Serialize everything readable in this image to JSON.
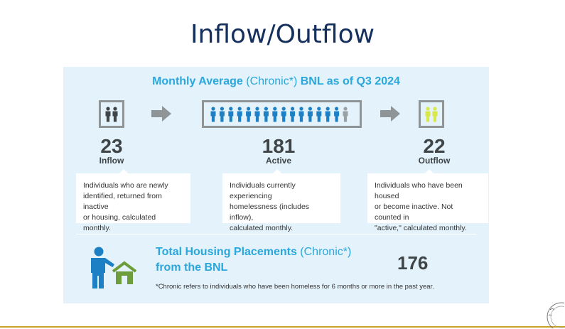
{
  "slide": {
    "title": "Inflow/Outflow"
  },
  "infographic": {
    "header": {
      "part1": "Monthly Average ",
      "part2": "(Chronic*)",
      "part3": " BNL as of Q3 2024"
    },
    "inflow": {
      "value": "23",
      "label": "Inflow",
      "line1": "Individuals who are newly",
      "line2": "identified, returned from inactive",
      "line3": "or housing, calculated monthly."
    },
    "active": {
      "value": "181",
      "label": "Active",
      "line1": "Individuals currently experiencing",
      "line2": "homelessness (includes inflow),",
      "line3": "calculated monthly."
    },
    "outflow": {
      "value": "22",
      "label": "Outflow",
      "line1": "Individuals who have been housed",
      "line2": "or become inactive. Not counted in",
      "line3": "\"active,\" calculated monthly."
    },
    "total": {
      "line1a": "Total Housing Placements ",
      "line1b": "(Chronic*)",
      "line2": "from the BNL",
      "value": "176"
    },
    "footnote": "*Chronic refers to individuals who have been homeless for 6 months or more in the past year."
  },
  "colors": {
    "title": "#16305e",
    "accent": "#2aa7dc",
    "panel": "#e3f2fb",
    "figure_dark": "#3f4447",
    "figure_blue": "#1d7fc4",
    "figure_yellow": "#d8e84a",
    "house_green": "#6c9d3a",
    "rule": "#c9a227"
  }
}
